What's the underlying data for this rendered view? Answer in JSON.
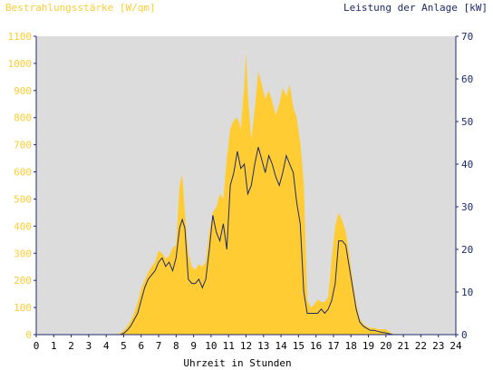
{
  "chart_data": {
    "type": "area",
    "left_axis_title": "Bestrahlungsstärke [W/qm]",
    "right_axis_title": "Leistung der Anlage [kW]",
    "xlabel": "Uhrzeit in Stunden",
    "xlim": [
      0,
      24
    ],
    "ylim_left": [
      0,
      1100
    ],
    "ylim_right": [
      0,
      70
    ],
    "x_ticks": [
      0,
      1,
      2,
      3,
      4,
      5,
      6,
      7,
      8,
      9,
      10,
      11,
      12,
      13,
      14,
      15,
      16,
      17,
      18,
      19,
      20,
      21,
      22,
      23,
      24
    ],
    "y_ticks_left": [
      0,
      100,
      200,
      300,
      400,
      500,
      600,
      700,
      800,
      900,
      1000,
      1100
    ],
    "y_ticks_right": [
      0,
      10,
      20,
      30,
      40,
      50,
      60,
      70
    ],
    "grid": false,
    "background_color": "#dcdcdc",
    "series": [
      {
        "name": "Bestrahlungsstärke [W/qm]",
        "axis": "left",
        "style": "filled-area",
        "color": "#ffcc33",
        "x": [
          0,
          4.5,
          4.8,
          5.0,
          5.2,
          5.4,
          5.6,
          5.8,
          6.0,
          6.2,
          6.4,
          6.6,
          6.8,
          7.0,
          7.2,
          7.4,
          7.6,
          7.8,
          8.0,
          8.2,
          8.35,
          8.5,
          8.7,
          8.9,
          9.1,
          9.3,
          9.5,
          9.7,
          9.9,
          10.1,
          10.3,
          10.5,
          10.7,
          10.9,
          11.1,
          11.3,
          11.5,
          11.7,
          11.9,
          12.0,
          12.1,
          12.3,
          12.5,
          12.7,
          12.9,
          13.1,
          13.3,
          13.5,
          13.7,
          13.9,
          14.1,
          14.3,
          14.5,
          14.7,
          14.9,
          15.1,
          15.3,
          15.5,
          15.7,
          15.9,
          16.1,
          16.3,
          16.5,
          16.7,
          16.9,
          17.1,
          17.3,
          17.5,
          17.7,
          17.9,
          18.1,
          18.3,
          18.5,
          18.7,
          18.9,
          19.1,
          19.3,
          19.5,
          19.8,
          20.0,
          20.2,
          20.5,
          21.0,
          24.0
        ],
        "values": [
          0,
          0,
          5,
          15,
          30,
          50,
          80,
          120,
          170,
          200,
          230,
          250,
          270,
          310,
          300,
          280,
          290,
          320,
          330,
          550,
          590,
          450,
          300,
          250,
          240,
          260,
          250,
          270,
          380,
          450,
          470,
          520,
          500,
          650,
          760,
          790,
          800,
          760,
          920,
          1040,
          890,
          720,
          830,
          970,
          920,
          870,
          900,
          860,
          810,
          850,
          910,
          880,
          920,
          840,
          800,
          710,
          560,
          130,
          100,
          110,
          130,
          120,
          120,
          140,
          280,
          400,
          450,
          420,
          380,
          300,
          200,
          120,
          60,
          40,
          30,
          25,
          25,
          20,
          20,
          20,
          10,
          0,
          0,
          0
        ]
      },
      {
        "name": "Leistung der Anlage [kW]",
        "axis": "right",
        "style": "line",
        "color": "#1c2a6b",
        "x": [
          0,
          4.8,
          5.0,
          5.2,
          5.4,
          5.6,
          5.8,
          6.0,
          6.2,
          6.4,
          6.6,
          6.8,
          7.0,
          7.2,
          7.4,
          7.6,
          7.8,
          8.0,
          8.2,
          8.35,
          8.5,
          8.7,
          8.9,
          9.1,
          9.3,
          9.5,
          9.7,
          9.9,
          10.1,
          10.3,
          10.5,
          10.7,
          10.9,
          11.1,
          11.3,
          11.5,
          11.7,
          11.9,
          12.1,
          12.3,
          12.5,
          12.7,
          12.9,
          13.1,
          13.3,
          13.5,
          13.7,
          13.9,
          14.1,
          14.3,
          14.5,
          14.7,
          14.9,
          15.1,
          15.3,
          15.5,
          15.7,
          15.9,
          16.1,
          16.3,
          16.5,
          16.7,
          16.9,
          17.1,
          17.3,
          17.5,
          17.7,
          17.9,
          18.1,
          18.3,
          18.5,
          18.7,
          18.9,
          19.1,
          19.3,
          19.5,
          19.8,
          20.0,
          20.2,
          20.4,
          24.0
        ],
        "values": [
          0,
          0,
          0.3,
          1,
          2,
          3.5,
          5,
          8,
          11,
          13,
          14,
          15,
          17,
          18,
          16,
          17,
          15,
          18,
          25,
          27,
          25,
          13,
          12,
          12,
          13,
          11,
          13,
          20,
          28,
          24,
          22,
          26,
          20,
          35,
          38,
          43,
          39,
          40,
          33,
          35,
          40,
          44,
          41,
          38,
          42,
          40,
          37,
          35,
          38,
          42,
          40,
          38,
          31,
          26,
          10,
          5,
          5,
          5,
          5,
          6,
          5,
          6,
          8,
          12,
          22,
          22,
          21,
          16,
          11,
          6,
          3,
          2,
          1.5,
          1,
          1,
          0.8,
          0.5,
          0.4,
          0.2,
          0,
          0
        ]
      }
    ]
  }
}
